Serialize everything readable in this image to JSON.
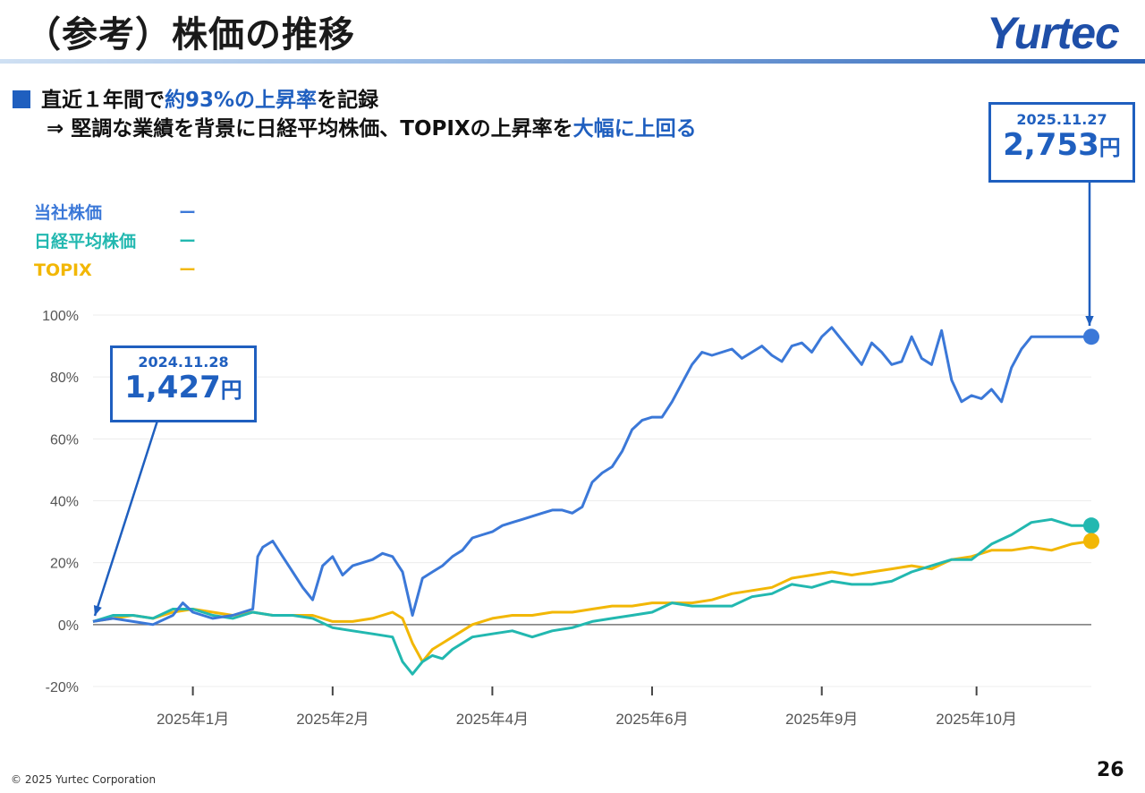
{
  "slide": {
    "title": "（参考）株価の推移",
    "logo_text": "Yurtec",
    "bullet1_pre": "直近１年間で",
    "bullet1_hl": "約93%の上昇率",
    "bullet1_post": "を記録",
    "bullet2_pre": "⇒ 堅調な業績を背景に日経平均株価、TOPIXの上昇率を",
    "bullet2_hl": "大幅に上回る",
    "footer": "© 2025 Yurtec Corporation",
    "page_number": "26"
  },
  "legend": [
    {
      "label": "当社株価",
      "mark": "ー",
      "color": "#3b78d8"
    },
    {
      "label": "日経平均株価",
      "mark": "ー",
      "color": "#22b8b0"
    },
    {
      "label": "TOPIX",
      "mark": "ー",
      "color": "#f2b705"
    }
  ],
  "callouts": {
    "start": {
      "date": "2024.11.28",
      "value": "1,427",
      "unit": "円"
    },
    "end": {
      "date": "2025.11.27",
      "value": "2,753",
      "unit": "円"
    }
  },
  "chart_data": {
    "type": "line",
    "title": "",
    "xlabel": "",
    "ylabel": "",
    "ylim": [
      -20,
      100
    ],
    "yticks": [
      -20,
      0,
      20,
      40,
      60,
      80,
      100
    ],
    "ytick_labels": [
      "-20%",
      "0%",
      "20%",
      "40%",
      "60%",
      "80%",
      "100%"
    ],
    "xlim": [
      0,
      100
    ],
    "xticks": [
      {
        "x": 10,
        "label": "2025年1月"
      },
      {
        "x": 24,
        "label": "2025年2月"
      },
      {
        "x": 40,
        "label": "2025年4月"
      },
      {
        "x": 56,
        "label": "2025年6月"
      },
      {
        "x": 73,
        "label": "2025年9月"
      },
      {
        "x": 88.5,
        "label": "2025年10月"
      }
    ],
    "grid": true,
    "series": [
      {
        "name": "当社株価",
        "color": "#3b78d8",
        "x": [
          0,
          2,
          4,
          6,
          8,
          9,
          10,
          11,
          12,
          14,
          15,
          16,
          16.5,
          17,
          18,
          19,
          20,
          21,
          22,
          23,
          24,
          25,
          26,
          28,
          29,
          30,
          31,
          32,
          33,
          34,
          35,
          36,
          37,
          38,
          39,
          40,
          41,
          42,
          43,
          44,
          45,
          46,
          47,
          48,
          49,
          50,
          51,
          52,
          53,
          54,
          55,
          56,
          57,
          58,
          59,
          60,
          61,
          62,
          63,
          64,
          65,
          66,
          67,
          68,
          69,
          70,
          71,
          72,
          73,
          74,
          75,
          76,
          77,
          78,
          79,
          80,
          81,
          82,
          83,
          84,
          85,
          86,
          87,
          88,
          89,
          90,
          91,
          92,
          93,
          94,
          95,
          96,
          97,
          98,
          99,
          100
        ],
        "values": [
          1,
          2,
          1,
          0,
          3,
          7,
          4,
          3,
          2,
          3,
          4,
          5,
          22,
          25,
          27,
          22,
          17,
          12,
          8,
          19,
          22,
          16,
          19,
          21,
          23,
          22,
          17,
          3,
          15,
          17,
          19,
          22,
          24,
          28,
          29,
          30,
          32,
          33,
          34,
          35,
          36,
          37,
          37,
          36,
          38,
          46,
          49,
          51,
          56,
          63,
          66,
          67,
          67,
          72,
          78,
          84,
          88,
          87,
          88,
          89,
          86,
          88,
          90,
          87,
          85,
          90,
          91,
          88,
          93,
          96,
          92,
          88,
          84,
          91,
          88,
          84,
          85,
          93,
          86,
          84,
          95,
          79,
          72,
          74,
          73,
          76,
          72,
          83,
          89,
          93,
          93,
          93,
          93,
          93,
          93,
          93
        ]
      },
      {
        "name": "日経平均株価",
        "color": "#22b8b0",
        "x": [
          0,
          2,
          4,
          6,
          8,
          10,
          12,
          14,
          16,
          18,
          20,
          22,
          24,
          26,
          28,
          30,
          31,
          32,
          33,
          34,
          35,
          36,
          38,
          40,
          42,
          44,
          46,
          48,
          50,
          52,
          54,
          56,
          58,
          60,
          62,
          64,
          66,
          68,
          70,
          72,
          74,
          76,
          78,
          80,
          82,
          84,
          86,
          88,
          90,
          92,
          94,
          96,
          98,
          100
        ],
        "values": [
          1,
          3,
          3,
          2,
          5,
          5,
          3,
          2,
          4,
          3,
          3,
          2,
          -1,
          -2,
          -3,
          -4,
          -12,
          -16,
          -12,
          -10,
          -11,
          -8,
          -4,
          -3,
          -2,
          -4,
          -2,
          -1,
          1,
          2,
          3,
          4,
          7,
          6,
          6,
          6,
          9,
          10,
          13,
          12,
          14,
          13,
          13,
          14,
          17,
          19,
          21,
          21,
          26,
          29,
          33,
          34,
          32,
          32
        ]
      },
      {
        "name": "TOPIX",
        "color": "#f2b705",
        "x": [
          0,
          2,
          4,
          6,
          8,
          10,
          12,
          14,
          16,
          18,
          20,
          22,
          24,
          26,
          28,
          30,
          31,
          32,
          33,
          34,
          35,
          36,
          38,
          40,
          42,
          44,
          46,
          48,
          50,
          52,
          54,
          56,
          58,
          60,
          62,
          64,
          66,
          68,
          70,
          72,
          74,
          76,
          78,
          80,
          82,
          84,
          86,
          88,
          90,
          92,
          94,
          96,
          98,
          100
        ],
        "values": [
          1,
          2,
          3,
          2,
          4,
          5,
          4,
          3,
          4,
          3,
          3,
          3,
          1,
          1,
          2,
          4,
          2,
          -6,
          -12,
          -8,
          -6,
          -4,
          0,
          2,
          3,
          3,
          4,
          4,
          5,
          6,
          6,
          7,
          7,
          7,
          8,
          10,
          11,
          12,
          15,
          16,
          17,
          16,
          17,
          18,
          19,
          18,
          21,
          22,
          24,
          24,
          25,
          24,
          26,
          27
        ]
      }
    ]
  }
}
